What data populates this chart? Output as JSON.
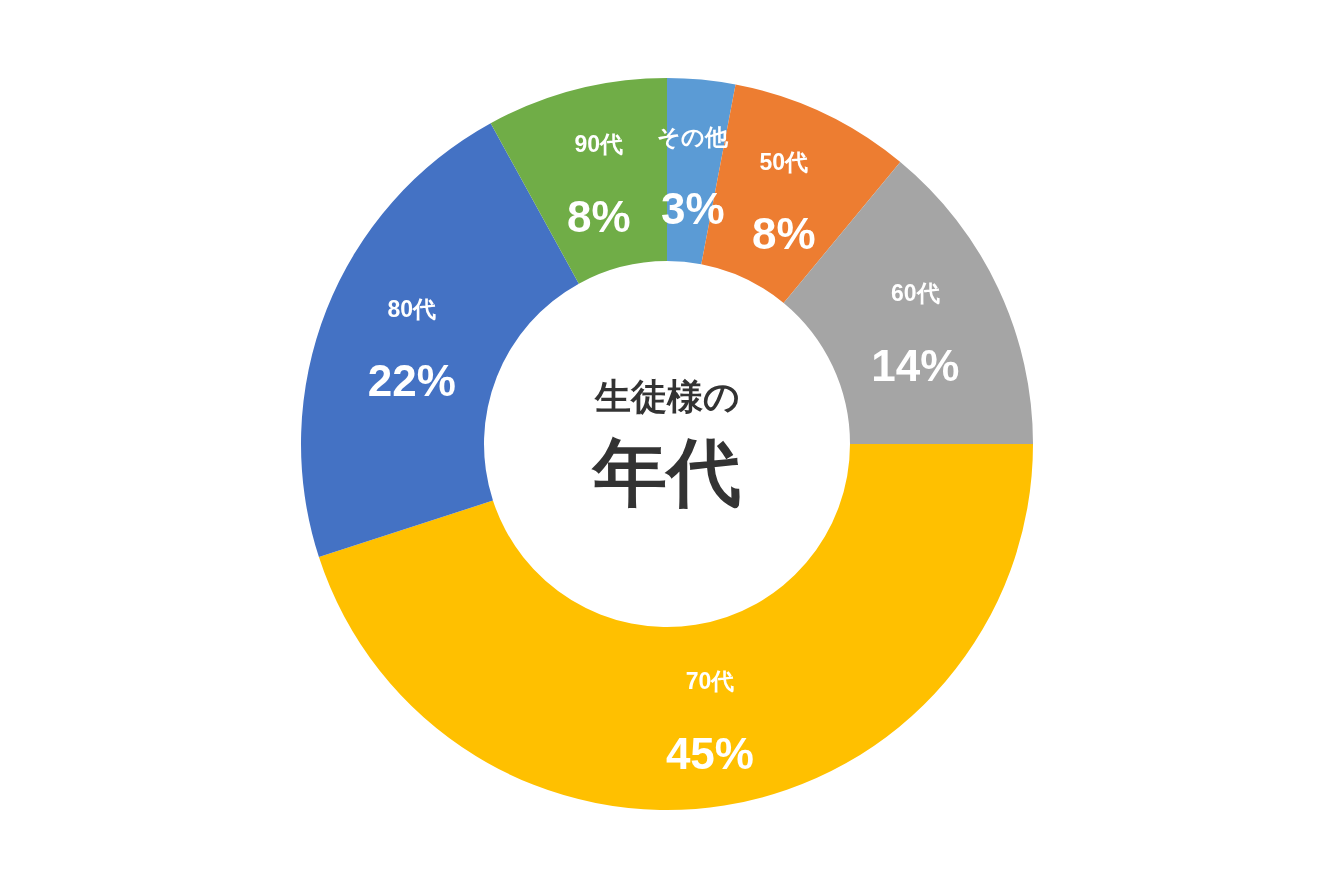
{
  "chart_data": {
    "type": "donut",
    "title": "生徒様の",
    "subtitle": "年代",
    "categories": [
      "その他",
      "50代",
      "60代",
      "70代",
      "80代",
      "90代"
    ],
    "values": [
      3,
      8,
      14,
      45,
      22,
      8
    ],
    "colors": [
      "#5b9bd5",
      "#ed7d31",
      "#a5a5a5",
      "#ffc000",
      "#4472c4",
      "#70ad47"
    ],
    "value_labels": [
      "3%",
      "8%",
      "14%",
      "45%",
      "22%",
      "8%"
    ]
  }
}
